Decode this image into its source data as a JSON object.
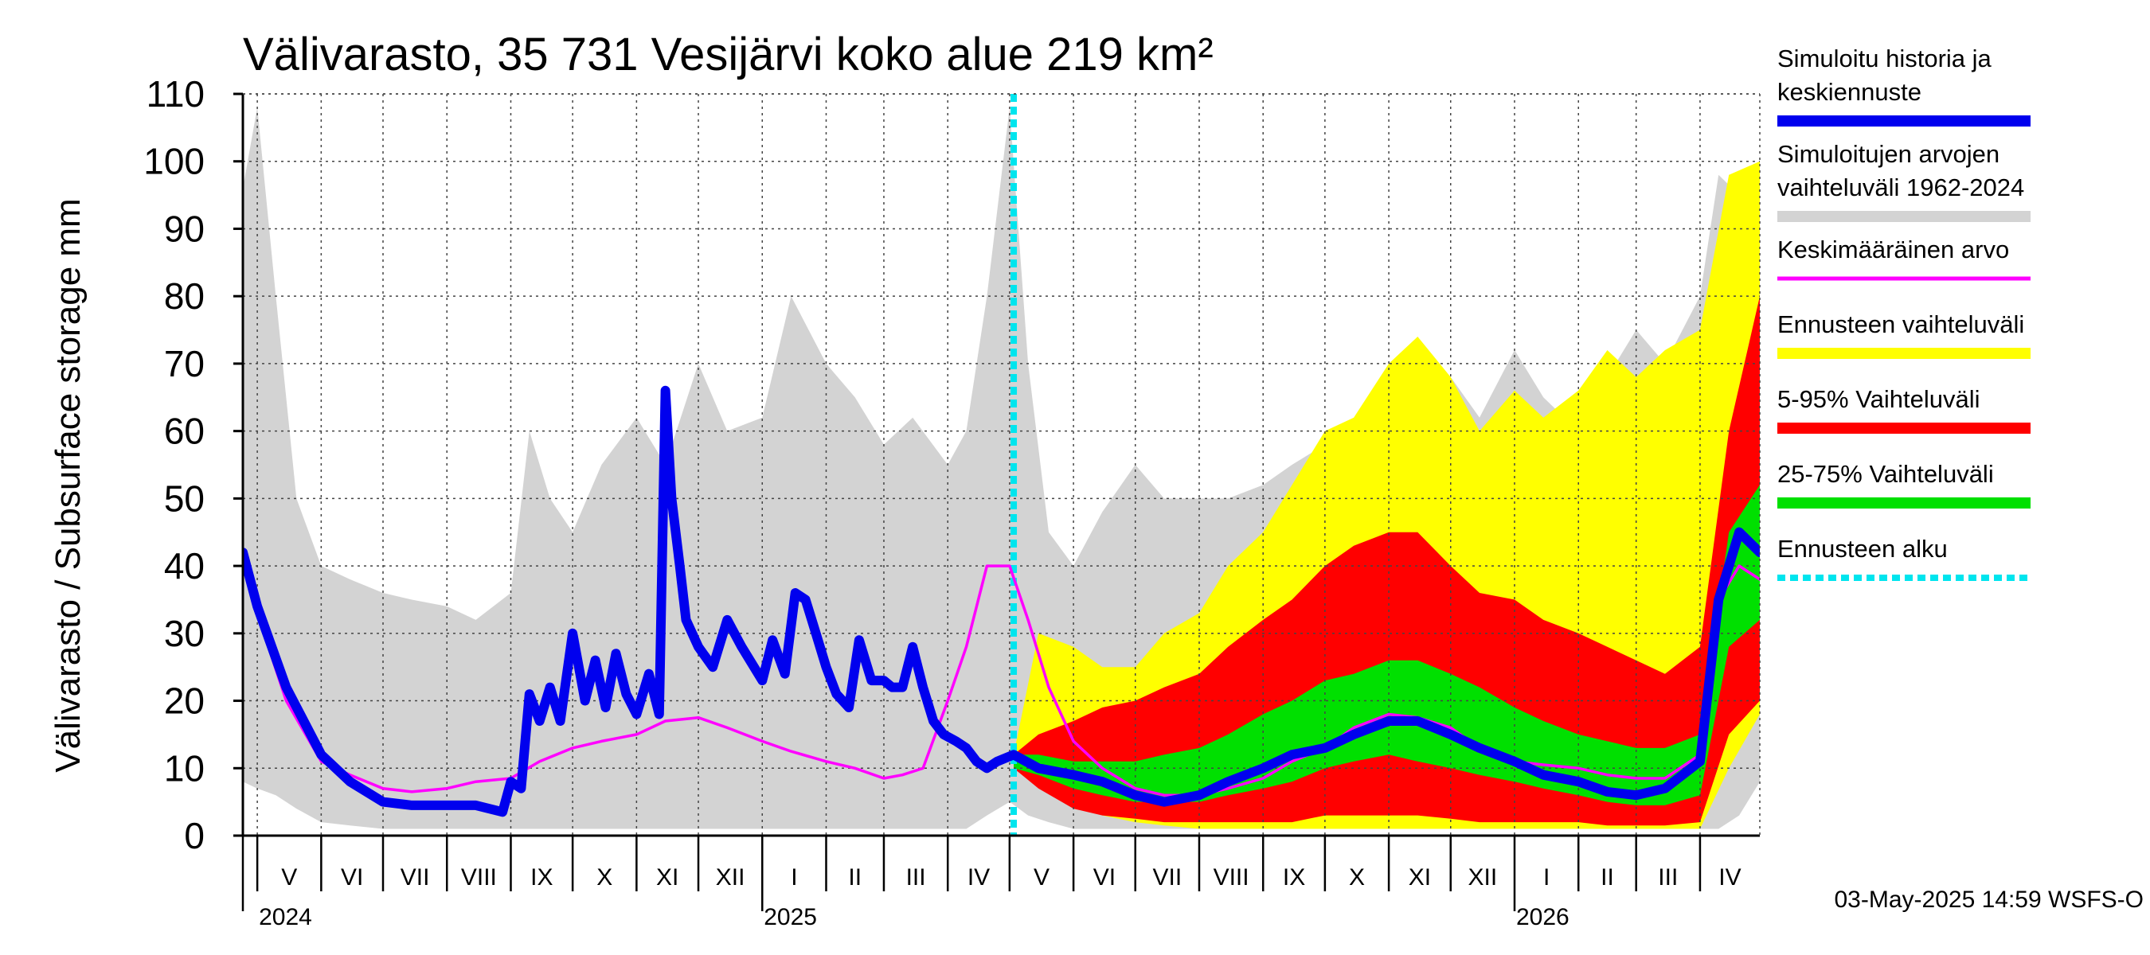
{
  "colors": {
    "history_range": "#d3d3d3",
    "forecast_range": "#ffff00",
    "p5_95": "#ff0000",
    "p25_75": "#00e000",
    "simulated": "#0000ee",
    "mean": "#ff00ff",
    "forecast_start": "#00e5ee"
  },
  "chart_data": {
    "type": "line",
    "title": "Välivarasto, 35 731 Vesijärvi koko alue 219 km²",
    "ylabel": "Välivarasto / Subsurface storage  mm",
    "xlabel": "",
    "ylim": [
      0,
      110
    ],
    "y_ticks": [
      0,
      10,
      20,
      30,
      40,
      50,
      60,
      70,
      80,
      90,
      100,
      110
    ],
    "x_range": [
      "2024-04-24",
      "2026-04-30"
    ],
    "forecast_start": "2025-05-03",
    "grid": true,
    "legend_position": "right",
    "months": [
      {
        "label": "V",
        "start": "2024-05-01"
      },
      {
        "label": "VI",
        "start": "2024-06-01"
      },
      {
        "label": "VII",
        "start": "2024-07-01"
      },
      {
        "label": "VIII",
        "start": "2024-08-01"
      },
      {
        "label": "IX",
        "start": "2024-09-01"
      },
      {
        "label": "X",
        "start": "2024-10-01"
      },
      {
        "label": "XI",
        "start": "2024-11-01"
      },
      {
        "label": "XII",
        "start": "2024-12-01"
      },
      {
        "label": "I",
        "start": "2025-01-01"
      },
      {
        "label": "II",
        "start": "2025-02-01"
      },
      {
        "label": "III",
        "start": "2025-03-01"
      },
      {
        "label": "IV",
        "start": "2025-04-01"
      },
      {
        "label": "V",
        "start": "2025-05-01"
      },
      {
        "label": "VI",
        "start": "2025-06-01"
      },
      {
        "label": "VII",
        "start": "2025-07-01"
      },
      {
        "label": "VIII",
        "start": "2025-08-01"
      },
      {
        "label": "IX",
        "start": "2025-09-01"
      },
      {
        "label": "X",
        "start": "2025-10-01"
      },
      {
        "label": "XI",
        "start": "2025-11-01"
      },
      {
        "label": "XII",
        "start": "2025-12-01"
      },
      {
        "label": "I",
        "start": "2026-01-01"
      },
      {
        "label": "II",
        "start": "2026-02-01"
      },
      {
        "label": "III",
        "start": "2026-03-01"
      },
      {
        "label": "IV",
        "start": "2026-04-01"
      }
    ],
    "years": [
      {
        "label": "2024",
        "date": "2024-05-01"
      },
      {
        "label": "2025",
        "date": "2025-01-01"
      },
      {
        "label": "2026",
        "date": "2026-01-01"
      }
    ],
    "legend": [
      {
        "key": "simulated",
        "lines": [
          "Simuloitu historia ja",
          "keskiennuste"
        ]
      },
      {
        "key": "history_range",
        "lines": [
          "Simuloitujen arvojen",
          "vaihteluväli 1962-2024"
        ]
      },
      {
        "key": "mean",
        "lines": [
          "Keskimääräinen arvo"
        ]
      },
      {
        "key": "forecast_range",
        "lines": [
          "Ennusteen vaihteluväli"
        ]
      },
      {
        "key": "p5_95",
        "lines": [
          "5-95% Vaihteluväli"
        ]
      },
      {
        "key": "p25_75",
        "lines": [
          "25-75% Vaihteluväli"
        ]
      },
      {
        "key": "forecast_start",
        "lines": [
          "Ennusteen alku"
        ]
      }
    ],
    "series": [
      {
        "key": "history_range",
        "type": "band",
        "x": [
          "2024-04-24",
          "2024-05-01",
          "2024-05-10",
          "2024-05-20",
          "2024-06-01",
          "2024-06-15",
          "2024-07-01",
          "2024-07-15",
          "2024-08-01",
          "2024-08-15",
          "2024-09-01",
          "2024-09-10",
          "2024-09-20",
          "2024-10-01",
          "2024-10-15",
          "2024-11-01",
          "2024-11-15",
          "2024-12-01",
          "2024-12-15",
          "2025-01-01",
          "2025-01-15",
          "2025-02-01",
          "2025-02-15",
          "2025-03-01",
          "2025-03-15",
          "2025-04-01",
          "2025-04-10",
          "2025-04-20",
          "2025-05-01",
          "2025-05-10",
          "2025-05-20",
          "2025-06-01",
          "2025-06-15",
          "2025-07-01",
          "2025-07-15",
          "2025-08-01",
          "2025-08-15",
          "2025-09-01",
          "2025-09-15",
          "2025-10-01",
          "2025-10-15",
          "2025-11-01",
          "2025-11-15",
          "2025-12-01",
          "2025-12-15",
          "2026-01-01",
          "2026-01-15",
          "2026-02-01",
          "2026-02-15",
          "2026-03-01",
          "2026-03-15",
          "2026-04-01",
          "2026-04-10",
          "2026-04-20",
          "2026-04-30"
        ],
        "low": [
          8,
          7,
          6,
          4,
          2,
          1.5,
          1,
          1,
          1,
          1,
          1,
          1,
          1,
          1,
          1,
          1,
          1,
          1,
          1,
          1,
          1,
          1,
          1,
          1,
          1,
          1,
          1,
          3,
          5,
          3,
          2,
          1,
          1,
          1,
          1,
          1,
          1,
          1,
          1,
          1,
          1,
          1,
          1,
          1,
          1,
          1,
          1,
          1,
          1,
          1,
          1,
          1,
          1,
          3,
          8
        ],
        "high": [
          96,
          108,
          80,
          50,
          40,
          38,
          36,
          35,
          34,
          32,
          36,
          60,
          50,
          45,
          55,
          62,
          55,
          70,
          60,
          62,
          80,
          70,
          65,
          58,
          62,
          55,
          60,
          80,
          108,
          70,
          45,
          40,
          48,
          55,
          50,
          50,
          50,
          52,
          55,
          58,
          60,
          65,
          60,
          68,
          62,
          72,
          65,
          60,
          68,
          75,
          70,
          80,
          98,
          95,
          100
        ]
      },
      {
        "key": "forecast_range",
        "type": "band",
        "x": [
          "2025-05-03",
          "2025-05-15",
          "2025-06-01",
          "2025-06-15",
          "2025-07-01",
          "2025-07-15",
          "2025-08-01",
          "2025-08-15",
          "2025-09-01",
          "2025-09-15",
          "2025-10-01",
          "2025-10-15",
          "2025-11-01",
          "2025-11-15",
          "2025-12-01",
          "2025-12-15",
          "2026-01-01",
          "2026-01-15",
          "2026-02-01",
          "2026-02-15",
          "2026-03-01",
          "2026-03-15",
          "2026-04-01",
          "2026-04-15",
          "2026-04-30"
        ],
        "low": [
          10,
          8,
          5,
          3,
          2,
          1.5,
          1,
          1,
          1,
          1,
          1,
          1,
          1,
          1,
          1,
          1,
          1,
          1,
          1,
          1,
          1,
          1,
          1,
          10,
          18
        ],
        "high": [
          12,
          30,
          28,
          25,
          25,
          30,
          33,
          40,
          45,
          52,
          60,
          62,
          70,
          74,
          68,
          60,
          66,
          62,
          66,
          72,
          68,
          72,
          75,
          98,
          100
        ]
      },
      {
        "key": "p5_95",
        "type": "band",
        "x": [
          "2025-05-03",
          "2025-05-15",
          "2025-06-01",
          "2025-06-15",
          "2025-07-01",
          "2025-07-15",
          "2025-08-01",
          "2025-08-15",
          "2025-09-01",
          "2025-09-15",
          "2025-10-01",
          "2025-10-15",
          "2025-11-01",
          "2025-11-15",
          "2025-12-01",
          "2025-12-15",
          "2026-01-01",
          "2026-01-15",
          "2026-02-01",
          "2026-02-15",
          "2026-03-01",
          "2026-03-15",
          "2026-04-01",
          "2026-04-15",
          "2026-04-30"
        ],
        "low": [
          10,
          7,
          4,
          3,
          2.5,
          2,
          2,
          2,
          2,
          2,
          3,
          3,
          3,
          3,
          2.5,
          2,
          2,
          2,
          2,
          1.5,
          1.5,
          1.5,
          2,
          15,
          20
        ],
        "high": [
          12,
          15,
          17,
          19,
          20,
          22,
          24,
          28,
          32,
          35,
          40,
          43,
          45,
          45,
          40,
          36,
          35,
          32,
          30,
          28,
          26,
          24,
          28,
          60,
          80
        ]
      },
      {
        "key": "p25_75",
        "type": "band",
        "x": [
          "2025-05-03",
          "2025-05-15",
          "2025-06-01",
          "2025-06-15",
          "2025-07-01",
          "2025-07-15",
          "2025-08-01",
          "2025-08-15",
          "2025-09-01",
          "2025-09-15",
          "2025-10-01",
          "2025-10-15",
          "2025-11-01",
          "2025-11-15",
          "2025-12-01",
          "2025-12-15",
          "2026-01-01",
          "2026-01-15",
          "2026-02-01",
          "2026-02-15",
          "2026-03-01",
          "2026-03-15",
          "2026-04-01",
          "2026-04-15",
          "2026-04-30"
        ],
        "low": [
          10,
          9,
          7,
          6,
          5,
          5,
          5,
          6,
          7,
          8,
          10,
          11,
          12,
          11,
          10,
          9,
          8,
          7,
          6,
          5,
          4.5,
          4.5,
          6,
          28,
          32
        ],
        "high": [
          12,
          12,
          11,
          11,
          11,
          12,
          13,
          15,
          18,
          20,
          23,
          24,
          26,
          26,
          24,
          22,
          19,
          17,
          15,
          14,
          13,
          13,
          15,
          45,
          52
        ]
      },
      {
        "key": "mean",
        "type": "line",
        "x": [
          "2024-04-24",
          "2024-05-01",
          "2024-05-15",
          "2024-06-01",
          "2024-06-15",
          "2024-07-01",
          "2024-07-15",
          "2024-08-01",
          "2024-08-15",
          "2024-09-01",
          "2024-09-15",
          "2024-10-01",
          "2024-10-15",
          "2024-11-01",
          "2024-11-15",
          "2024-12-01",
          "2024-12-15",
          "2025-01-01",
          "2025-01-15",
          "2025-02-01",
          "2025-02-15",
          "2025-03-01",
          "2025-03-10",
          "2025-03-20",
          "2025-04-01",
          "2025-04-10",
          "2025-04-20",
          "2025-05-01",
          "2025-05-10",
          "2025-05-20",
          "2025-06-01",
          "2025-06-15",
          "2025-07-01",
          "2025-07-15",
          "2025-08-01",
          "2025-08-15",
          "2025-09-01",
          "2025-09-15",
          "2025-10-01",
          "2025-10-15",
          "2025-11-01",
          "2025-11-15",
          "2025-12-01",
          "2025-12-15",
          "2026-01-01",
          "2026-01-15",
          "2026-02-01",
          "2026-02-15",
          "2026-03-01",
          "2026-03-15",
          "2026-04-01",
          "2026-04-10",
          "2026-04-20",
          "2026-04-30"
        ],
        "y": [
          41,
          33,
          20,
          11,
          9,
          7,
          6.5,
          7,
          8,
          8.5,
          11,
          13,
          14,
          15,
          17,
          17.5,
          16,
          14,
          12.5,
          11,
          10,
          8.5,
          9,
          10,
          20,
          28,
          40,
          40,
          32,
          22,
          14,
          10,
          7,
          6,
          6,
          7,
          8.5,
          11,
          13,
          16,
          18,
          17.5,
          16,
          13,
          11,
          10.5,
          10,
          9,
          8.5,
          8.5,
          12,
          35,
          40,
          38
        ]
      },
      {
        "key": "simulated",
        "type": "line",
        "x": [
          "2024-04-24",
          "2024-05-01",
          "2024-05-15",
          "2024-06-01",
          "2024-06-15",
          "2024-07-01",
          "2024-07-15",
          "2024-08-01",
          "2024-08-15",
          "2024-08-28",
          "2024-09-01",
          "2024-09-06",
          "2024-09-10",
          "2024-09-15",
          "2024-09-20",
          "2024-09-25",
          "2024-10-01",
          "2024-10-07",
          "2024-10-12",
          "2024-10-17",
          "2024-10-22",
          "2024-10-27",
          "2024-11-01",
          "2024-11-07",
          "2024-11-12",
          "2024-11-15",
          "2024-11-18",
          "2024-11-22",
          "2024-11-25",
          "2024-12-01",
          "2024-12-08",
          "2024-12-15",
          "2024-12-22",
          "2025-01-01",
          "2025-01-06",
          "2025-01-12",
          "2025-01-17",
          "2025-01-22",
          "2025-01-27",
          "2025-02-01",
          "2025-02-06",
          "2025-02-12",
          "2025-02-17",
          "2025-02-23",
          "2025-03-01",
          "2025-03-05",
          "2025-03-10",
          "2025-03-15",
          "2025-03-20",
          "2025-03-25",
          "2025-03-30",
          "2025-04-05",
          "2025-04-10",
          "2025-04-15",
          "2025-04-20",
          "2025-04-25",
          "2025-05-03",
          "2025-05-15",
          "2025-06-01",
          "2025-06-15",
          "2025-07-01",
          "2025-07-15",
          "2025-08-01",
          "2025-08-15",
          "2025-09-01",
          "2025-09-15",
          "2025-10-01",
          "2025-10-15",
          "2025-11-01",
          "2025-11-15",
          "2025-12-01",
          "2025-12-15",
          "2026-01-01",
          "2026-01-15",
          "2026-02-01",
          "2026-02-15",
          "2026-03-01",
          "2026-03-15",
          "2026-04-01",
          "2026-04-10",
          "2026-04-20",
          "2026-04-30"
        ],
        "y": [
          42,
          34,
          22,
          12,
          8,
          5,
          4.5,
          4.5,
          4.5,
          3.5,
          8,
          7,
          21,
          17,
          22,
          17,
          30,
          20,
          26,
          19,
          27,
          21,
          18,
          24,
          18,
          66,
          50,
          40,
          32,
          28,
          25,
          32,
          28,
          23,
          29,
          24,
          36,
          35,
          30,
          25,
          21,
          19,
          29,
          23,
          23,
          22,
          22,
          28,
          22,
          17,
          15,
          14,
          13,
          11,
          10,
          11,
          12,
          10,
          9,
          8,
          6,
          5,
          6,
          8,
          10,
          12,
          13,
          15,
          17,
          17,
          15,
          13,
          11,
          9,
          8,
          6.5,
          6,
          7,
          11,
          35,
          45,
          42
        ]
      }
    ]
  },
  "footer": {
    "timestamp": "03-May-2025 14:59 WSFS-O"
  }
}
